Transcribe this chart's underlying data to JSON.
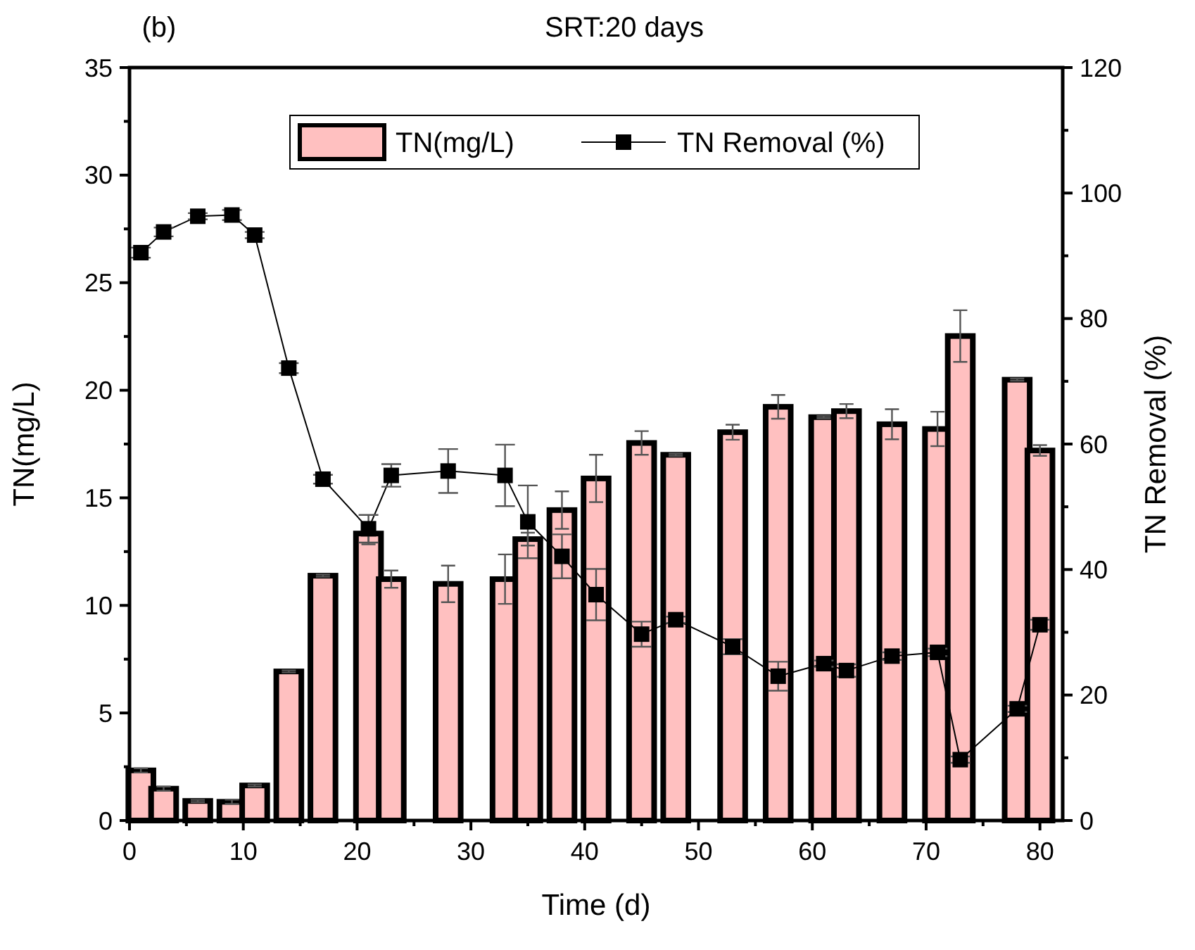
{
  "chart_data": {
    "type": "bar",
    "title": "SRT:20 days",
    "annotations": [
      "(b)"
    ],
    "xlabel": "Time (d)",
    "ylabel": "TN(mg/L)",
    "y2label": "TN Removal (%)",
    "x": [
      1,
      3,
      6,
      9,
      11,
      14,
      17,
      21,
      23,
      28,
      33,
      35,
      38,
      41,
      45,
      48,
      53,
      57,
      61,
      63,
      67,
      71,
      73,
      78,
      80
    ],
    "series": [
      {
        "name": "TN(mg/L)",
        "color": "#ffc0c0",
        "values": [
          2.33,
          1.48,
          0.91,
          0.87,
          1.63,
          6.93,
          11.38,
          13.34,
          11.22,
          11.0,
          11.22,
          13.08,
          14.43,
          15.9,
          17.55,
          17.0,
          18.05,
          19.23,
          18.75,
          19.03,
          18.42,
          18.2,
          22.52,
          20.49,
          17.2
        ],
        "errors": [
          0.1,
          0.1,
          0.05,
          0.1,
          0.05,
          0.05,
          0.05,
          0.5,
          0.4,
          0.85,
          1.15,
          0.3,
          0.87,
          1.1,
          0.55,
          0.05,
          0.35,
          0.55,
          0.05,
          0.33,
          0.7,
          0.8,
          1.2,
          0.05,
          0.25
        ]
      },
      {
        "name": "TN Removal (%)",
        "type": "line",
        "axis": "y2",
        "color": "#000000",
        "marker": "square",
        "values": [
          90.5,
          93.8,
          96.3,
          96.5,
          93.3,
          72.1,
          54.4,
          46.5,
          55.0,
          55.7,
          55.0,
          47.6,
          42.1,
          36.0,
          29.7,
          32.0,
          27.7,
          23.0,
          25.0,
          23.9,
          26.2,
          26.8,
          9.7,
          17.8,
          31.2
        ],
        "errors": [
          0.8,
          0.7,
          0.5,
          0.8,
          0.5,
          0.8,
          0.7,
          2.2,
          1.8,
          3.5,
          4.9,
          5.8,
          3.5,
          4.1,
          2.0,
          0.5,
          1.2,
          2.3,
          0.5,
          1.0,
          0.6,
          0.6,
          0.5,
          0.5,
          0.8
        ]
      }
    ],
    "xlim": [
      0,
      82
    ],
    "xticks": [
      0,
      10,
      20,
      30,
      40,
      50,
      60,
      70,
      80
    ],
    "ylim": [
      0,
      35
    ],
    "yticks": [
      0,
      5,
      10,
      15,
      20,
      25,
      30,
      35
    ],
    "y2lim": [
      0,
      120
    ],
    "y2ticks": [
      0,
      20,
      40,
      60,
      80,
      100,
      120
    ],
    "legend": "top",
    "grid": false
  }
}
